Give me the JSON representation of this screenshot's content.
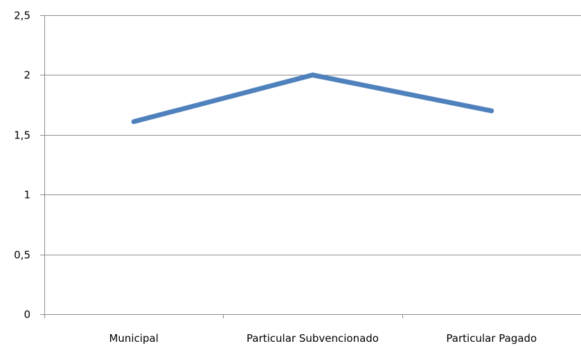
{
  "chart_data": {
    "type": "line",
    "categories": [
      "Municipal",
      "Particular Subvencionado",
      "Particular Pagado"
    ],
    "series": [
      {
        "values": [
          1.61,
          2.0,
          1.7
        ],
        "color": "#4f81bd"
      }
    ],
    "ylim": [
      0,
      2.5
    ],
    "y_ticks": [
      0,
      0.5,
      1,
      1.5,
      2,
      2.5
    ],
    "y_tick_labels": [
      "0",
      "0,5",
      "1",
      "1,5",
      "2",
      "2,5"
    ],
    "grid": true,
    "legend": "none",
    "title": "",
    "xlabel": "",
    "ylabel": ""
  }
}
